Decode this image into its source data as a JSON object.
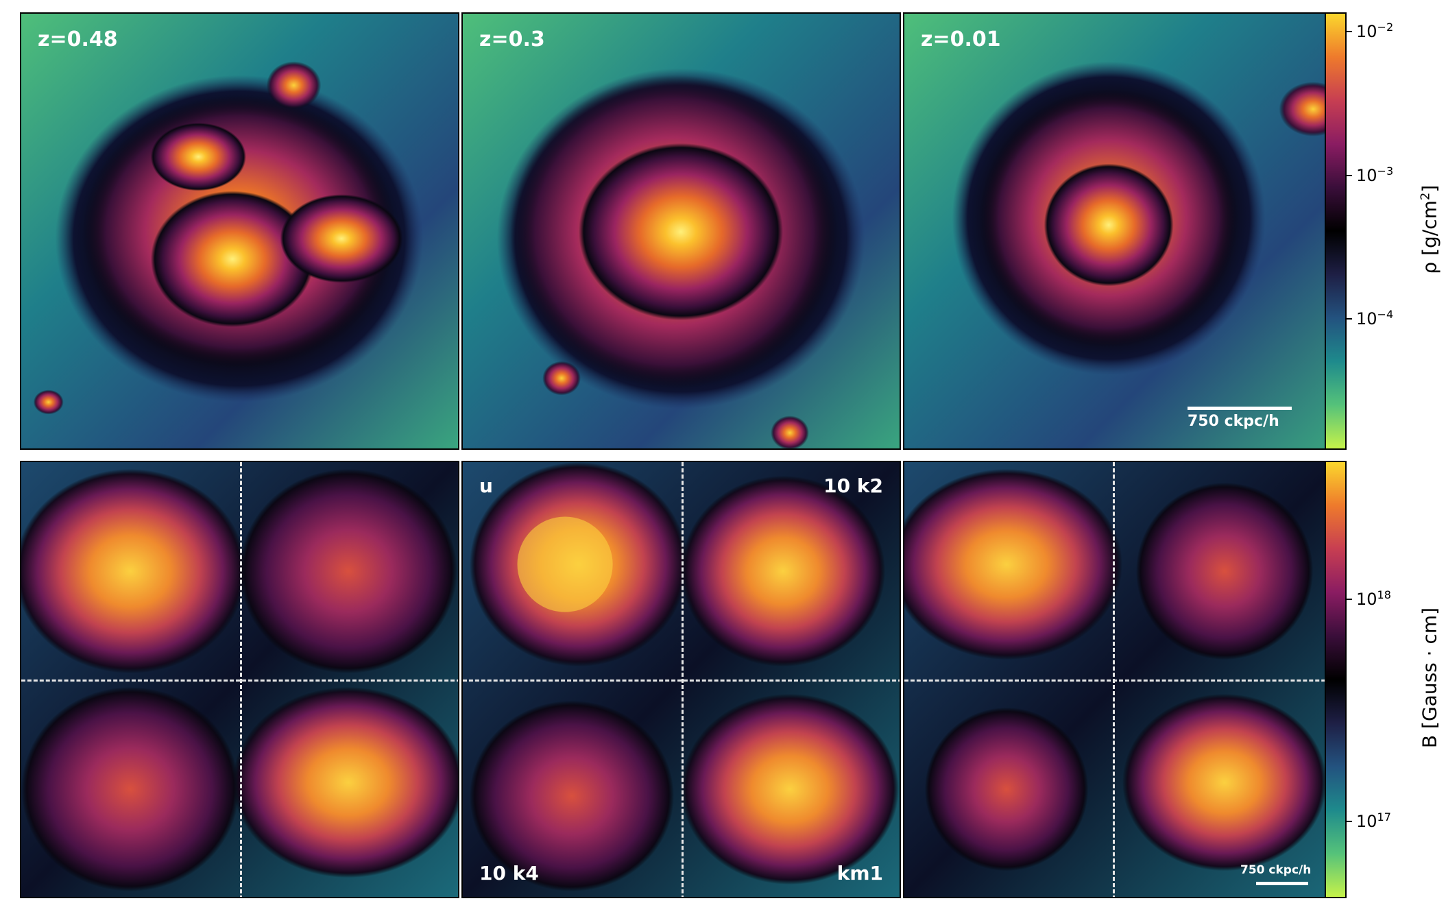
{
  "top_row": {
    "panels": [
      {
        "label": "z=0.48"
      },
      {
        "label": "z=0.3"
      },
      {
        "label": "z=0.01"
      }
    ],
    "scalebar": "750 ckpc/h",
    "colorbar": {
      "label_base": "ρ [g/cm",
      "label_sup": "2",
      "label_end": "]",
      "ticks": [
        {
          "base": "10",
          "exp": "−2"
        },
        {
          "base": "10",
          "exp": "−3"
        },
        {
          "base": "10",
          "exp": "−4"
        }
      ],
      "colormap": [
        "#c5f24a",
        "#55c27a",
        "#1e8a8c",
        "#23527f",
        "#1e1f45",
        "#000000",
        "#3a0e3a",
        "#8a1c62",
        "#c73e52",
        "#ee7a2c",
        "#fbd72d"
      ]
    }
  },
  "bottom_row": {
    "panels": [
      {
        "labels": []
      },
      {
        "labels": [
          "u",
          "10 k2",
          "10 k4",
          "km1"
        ]
      },
      {
        "labels": []
      }
    ],
    "scalebar": "750 ckpc/h",
    "colorbar": {
      "label": "B [Gauss · cm]",
      "ticks": [
        {
          "base": "10",
          "exp": "18"
        },
        {
          "base": "10",
          "exp": "17"
        }
      ],
      "colormap": [
        "#c5f24a",
        "#55c27a",
        "#1e8a8c",
        "#23527f",
        "#1e1f45",
        "#000000",
        "#3a0e3a",
        "#8a1c62",
        "#c73e52",
        "#ee7a2c",
        "#fbd72d"
      ]
    }
  }
}
